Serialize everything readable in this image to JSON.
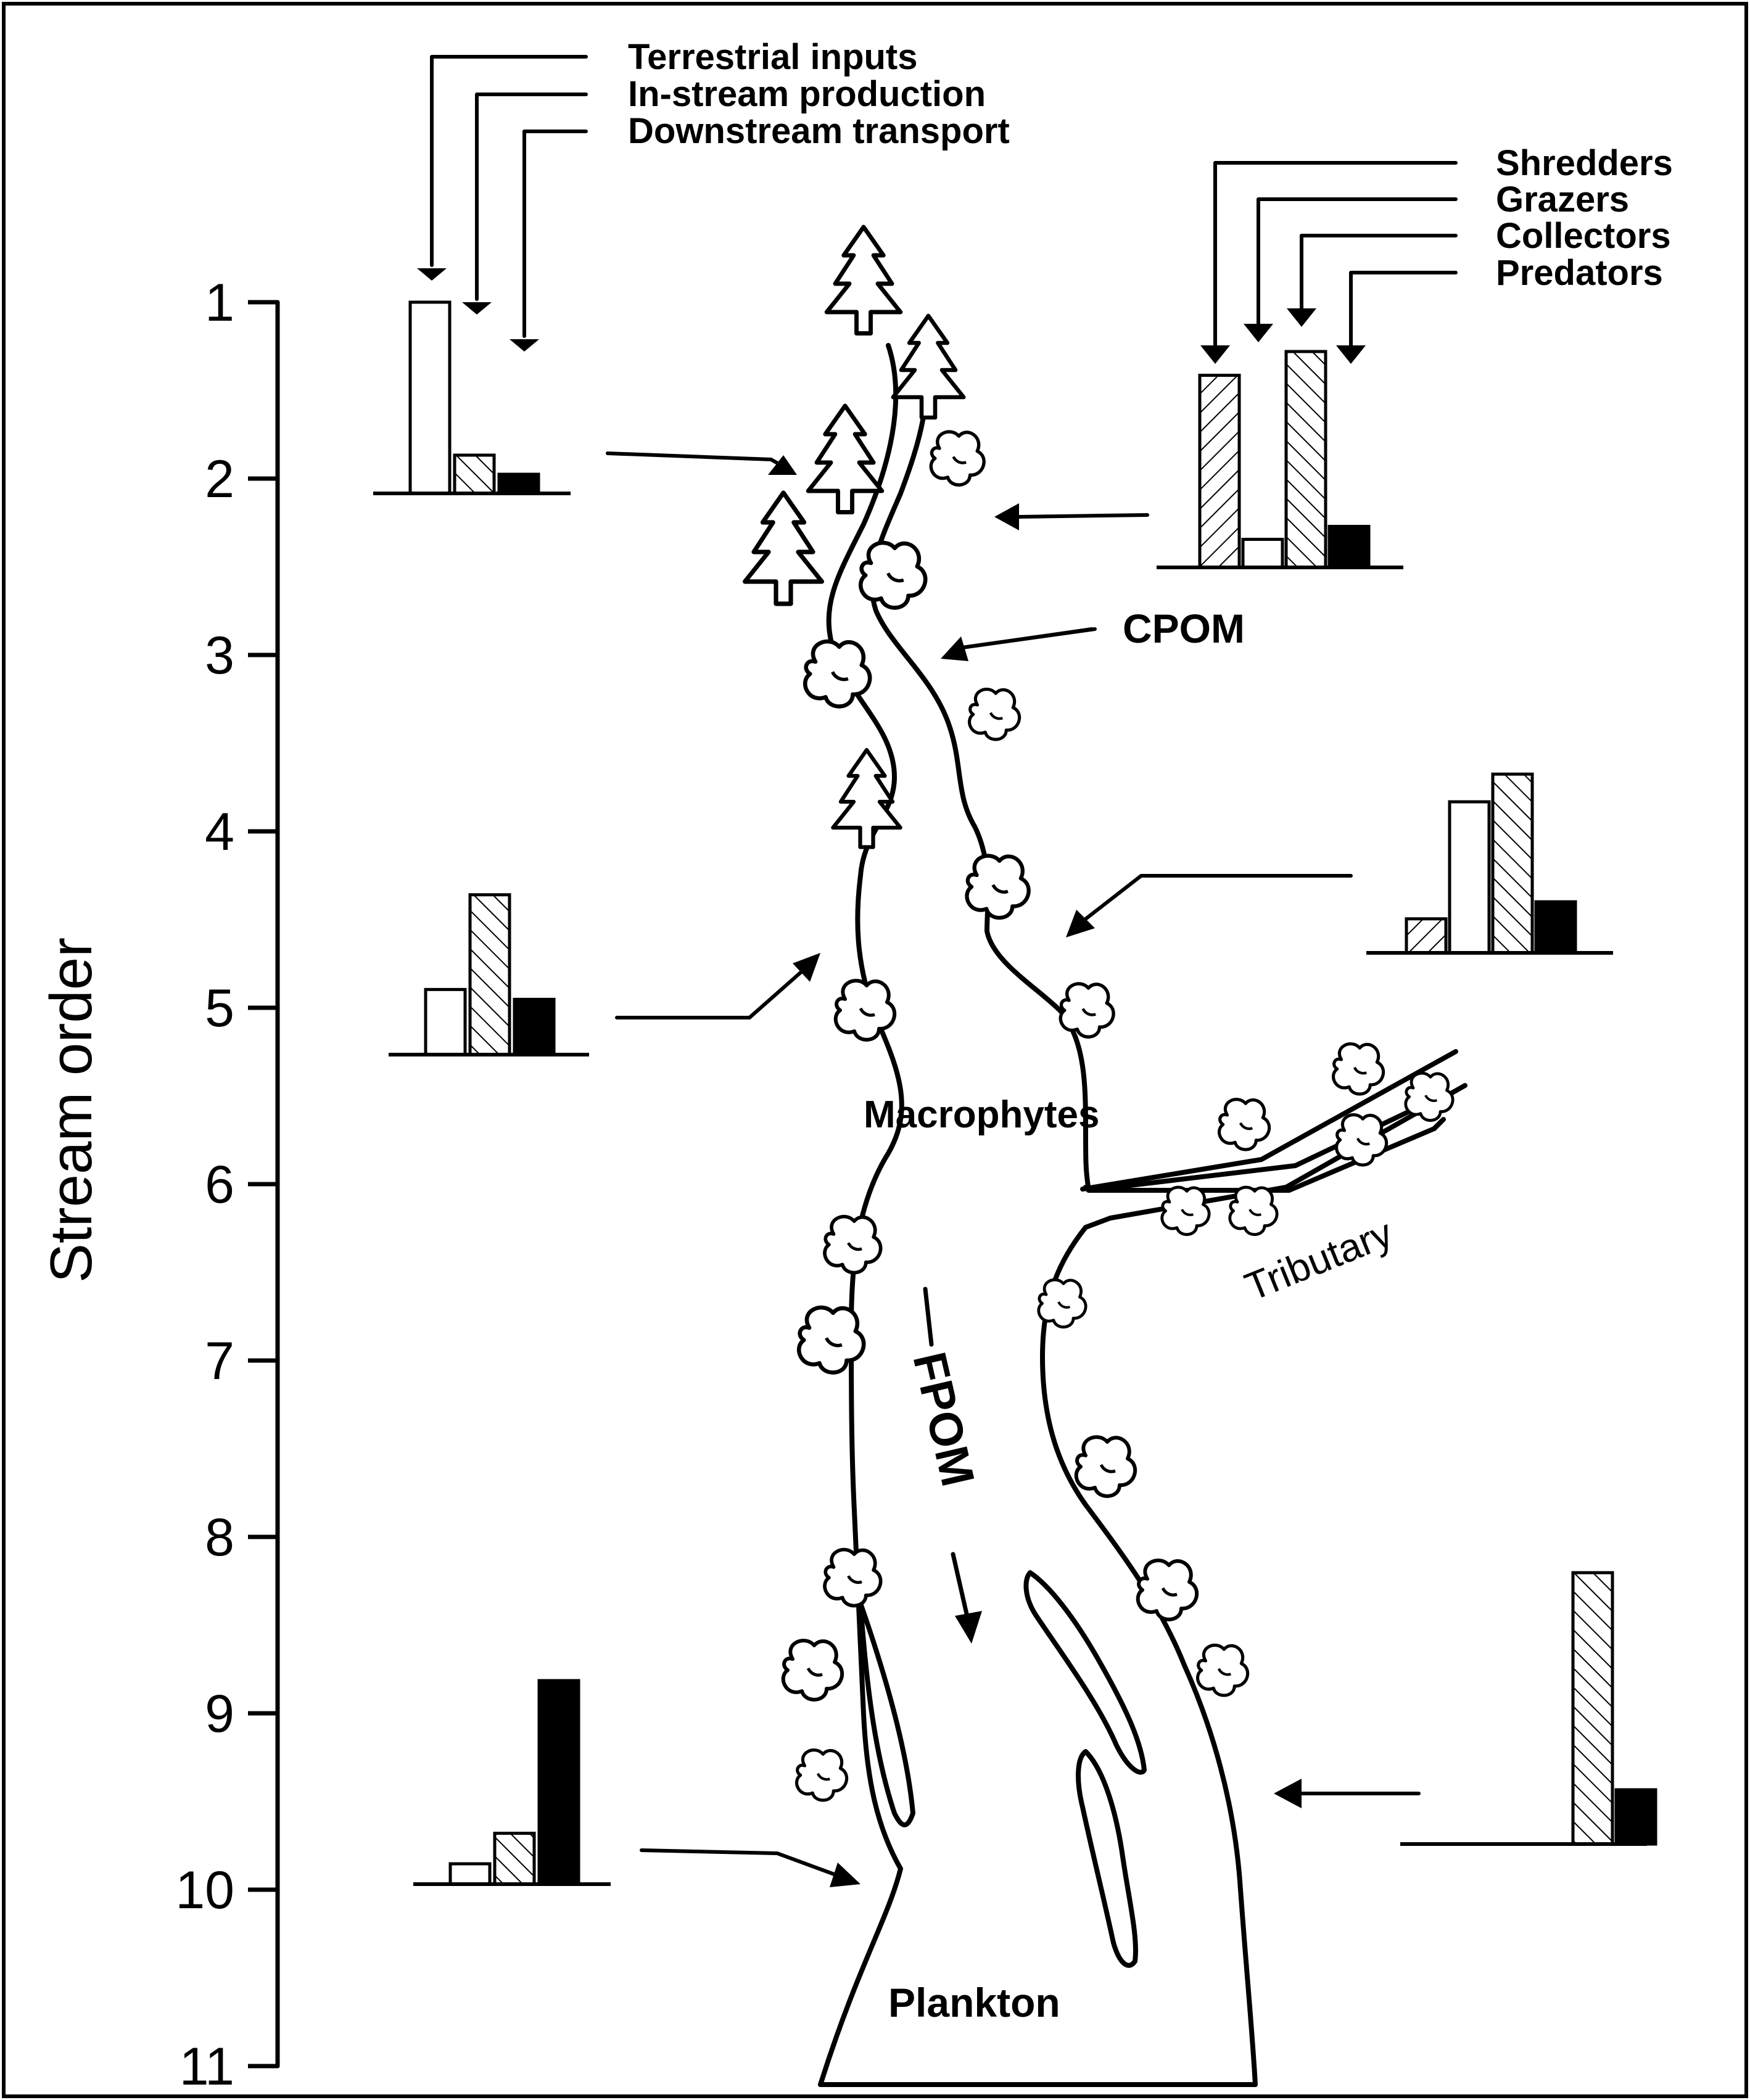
{
  "axis": {
    "label": "Stream order",
    "ticks": [
      "1",
      "2",
      "3",
      "4",
      "5",
      "6",
      "7",
      "8",
      "9",
      "10",
      "11"
    ]
  },
  "legend_inputs": [
    "Terrestrial inputs",
    "In-stream production",
    "Downstream transport"
  ],
  "legend_feeding": [
    "Shredders",
    "Grazers",
    "Collectors",
    "Predators"
  ],
  "river_labels": {
    "cpom": "CPOM",
    "macrophytes": "Macrophytes",
    "tributary": "Tributary",
    "fpom": "FPOM",
    "plankton": "Plankton"
  },
  "chart_data": [
    {
      "type": "bar",
      "position": "left, stream order 1-2",
      "categories": [
        "Terrestrial inputs",
        "In-stream production",
        "Downstream transport"
      ],
      "values": [
        1.0,
        0.2,
        0.1
      ]
    },
    {
      "type": "bar",
      "position": "left, stream order 4-5",
      "categories": [
        "Terrestrial inputs",
        "In-stream production",
        "Downstream transport"
      ],
      "values": [
        0.33,
        0.81,
        0.28
      ]
    },
    {
      "type": "bar",
      "position": "left, stream order 9-10",
      "categories": [
        "Terrestrial inputs",
        "In-stream production",
        "Downstream transport"
      ],
      "values": [
        0.1,
        0.25,
        1.0
      ]
    },
    {
      "type": "bar",
      "position": "right, stream order 1-2",
      "categories": [
        "Shredders",
        "Grazers",
        "Collectors",
        "Predators"
      ],
      "values": [
        0.89,
        0.13,
        1.0,
        0.19
      ]
    },
    {
      "type": "bar",
      "position": "right, stream order 4",
      "categories": [
        "Shredders",
        "Grazers",
        "Collectors",
        "Predators"
      ],
      "values": [
        0.16,
        0.71,
        0.84,
        0.24
      ]
    },
    {
      "type": "bar",
      "position": "right, stream order 8-9",
      "categories": [
        "Shredders",
        "Grazers",
        "Collectors",
        "Predators"
      ],
      "values": [
        0.0,
        0.0,
        1.0,
        0.2
      ]
    }
  ]
}
